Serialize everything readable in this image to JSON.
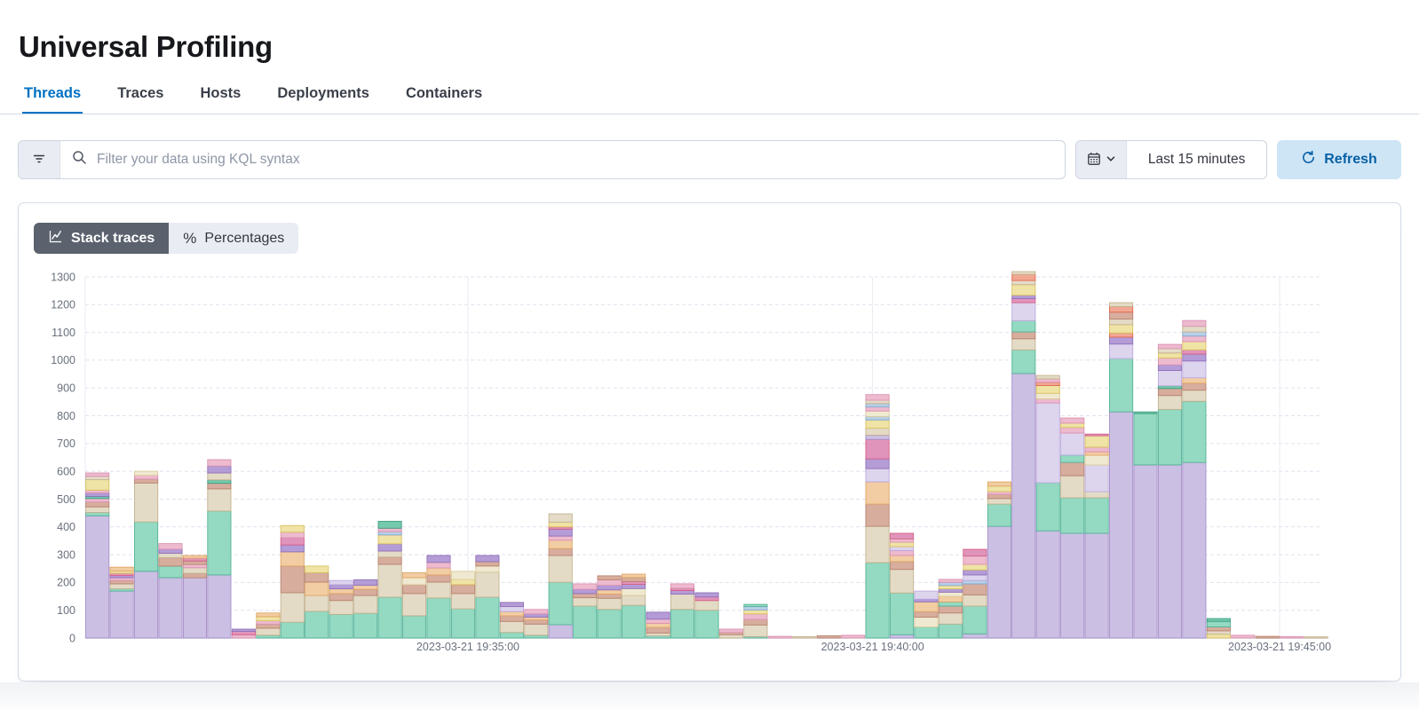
{
  "page": {
    "title": "Universal Profiling"
  },
  "tabs": [
    {
      "label": "Threads",
      "active": true
    },
    {
      "label": "Traces",
      "active": false
    },
    {
      "label": "Hosts",
      "active": false
    },
    {
      "label": "Deployments",
      "active": false
    },
    {
      "label": "Containers",
      "active": false
    }
  ],
  "filter_bar": {
    "search_placeholder": "Filter your data using KQL syntax",
    "time_range": "Last 15 minutes",
    "refresh_label": "Refresh"
  },
  "view_toggle": {
    "options": [
      {
        "label": "Stack traces",
        "icon": "line-chart-icon",
        "active": true
      },
      {
        "label": "Percentages",
        "icon": "percent-icon",
        "active": false
      }
    ]
  },
  "chart_data": {
    "type": "bar",
    "stacked": true,
    "orientation": "vertical",
    "legend": "none",
    "grid": "dashed-horizontal",
    "ylim": [
      0,
      1300
    ],
    "y_ticks": [
      0,
      100,
      200,
      300,
      400,
      500,
      600,
      700,
      800,
      900,
      1000,
      1100,
      1200,
      1300
    ],
    "x_ticks": [
      {
        "label": "2023-03-21 19:35:00",
        "slot": 15.7
      },
      {
        "label": "2023-03-21 19:40:00",
        "slot": 32.3
      },
      {
        "label": "2023-03-21 19:45:00",
        "slot": 49.0
      }
    ],
    "palette": {
      "P": {
        "name": "purple",
        "fill": "#CBBFE3",
        "stroke": "#A58FC9"
      },
      "L": {
        "name": "lavender",
        "fill": "#DDD4EE",
        "stroke": "#BCAADD"
      },
      "V": {
        "name": "violet",
        "fill": "#B49CD7",
        "stroke": "#9170B8"
      },
      "T": {
        "name": "teal",
        "fill": "#94D9C1",
        "stroke": "#54B399"
      },
      "G": {
        "name": "green",
        "fill": "#75C9AC",
        "stroke": "#3D9E81"
      },
      "N": {
        "name": "tan",
        "fill": "#E4DBC7",
        "stroke": "#C3B28E"
      },
      "C": {
        "name": "cream",
        "fill": "#F0E9D1",
        "stroke": "#D9CB9A"
      },
      "R": {
        "name": "rose",
        "fill": "#D7AD9E",
        "stroke": "#B8846F"
      },
      "O": {
        "name": "orange",
        "fill": "#F2CDA3",
        "stroke": "#E0A566"
      },
      "K": {
        "name": "pink",
        "fill": "#EDBACE",
        "stroke": "#DB92B3"
      },
      "M": {
        "name": "magenta",
        "fill": "#E194BB",
        "stroke": "#D36086"
      },
      "Y": {
        "name": "yellow",
        "fill": "#EFE3A5",
        "stroke": "#D9C360"
      },
      "E": {
        "name": "red",
        "fill": "#F0A893",
        "stroke": "#E7664C"
      },
      "B": {
        "name": "blue",
        "fill": "#B8D0E7",
        "stroke": "#84A9CE"
      }
    },
    "bars": [
      [
        [
          "P",
          440
        ],
        [
          "T",
          12
        ],
        [
          "N",
          20
        ],
        [
          "R",
          18
        ],
        [
          "K",
          12
        ],
        [
          "G",
          8
        ],
        [
          "V",
          12
        ],
        [
          "K",
          10
        ],
        [
          "Y",
          38
        ],
        [
          "N",
          12
        ],
        [
          "K",
          12
        ]
      ],
      [
        [
          "P",
          169
        ],
        [
          "T",
          8
        ],
        [
          "N",
          18
        ],
        [
          "R",
          12
        ],
        [
          "K",
          10
        ],
        [
          "V",
          8
        ],
        [
          "M",
          8
        ],
        [
          "Y",
          8
        ],
        [
          "O",
          14
        ]
      ],
      [
        [
          "P",
          240
        ],
        [
          "T",
          178
        ],
        [
          "N",
          140
        ],
        [
          "R",
          14
        ],
        [
          "K",
          14
        ],
        [
          "C",
          14
        ]
      ],
      [
        [
          "P",
          217
        ],
        [
          "T",
          42
        ],
        [
          "R",
          30
        ],
        [
          "N",
          16
        ],
        [
          "V",
          15
        ],
        [
          "K",
          20
        ]
      ],
      [
        [
          "P",
          217
        ],
        [
          "R",
          16
        ],
        [
          "N",
          20
        ],
        [
          "K",
          12
        ],
        [
          "R",
          12
        ],
        [
          "M",
          10
        ],
        [
          "O",
          10
        ]
      ],
      [
        [
          "P",
          227
        ],
        [
          "T",
          230
        ],
        [
          "N",
          80
        ],
        [
          "R",
          20
        ],
        [
          "G",
          12
        ],
        [
          "N",
          25
        ],
        [
          "V",
          25
        ],
        [
          "K",
          23
        ]
      ],
      [
        [
          "K",
          12
        ],
        [
          "M",
          12
        ],
        [
          "V",
          8
        ]
      ],
      [
        [
          "T",
          10
        ],
        [
          "N",
          25
        ],
        [
          "R",
          15
        ],
        [
          "K",
          12
        ],
        [
          "Y",
          15
        ],
        [
          "O",
          13
        ]
      ],
      [
        [
          "T",
          57
        ],
        [
          "N",
          106
        ],
        [
          "R",
          96
        ],
        [
          "O",
          51
        ],
        [
          "V",
          25
        ],
        [
          "M",
          26
        ],
        [
          "K",
          20
        ],
        [
          "Y",
          24
        ]
      ],
      [
        [
          "T",
          96
        ],
        [
          "N",
          57
        ],
        [
          "O",
          48
        ],
        [
          "R",
          34
        ],
        [
          "Y",
          24
        ]
      ],
      [
        [
          "T",
          85
        ],
        [
          "N",
          50
        ],
        [
          "R",
          25
        ],
        [
          "O",
          17
        ],
        [
          "V",
          15
        ],
        [
          "L",
          15
        ]
      ],
      [
        [
          "T",
          89
        ],
        [
          "N",
          64
        ],
        [
          "R",
          22
        ],
        [
          "O",
          15
        ],
        [
          "V",
          20
        ]
      ],
      [
        [
          "T",
          147
        ],
        [
          "N",
          118
        ],
        [
          "R",
          26
        ],
        [
          "N",
          22
        ],
        [
          "V",
          26
        ],
        [
          "Y",
          32
        ],
        [
          "B",
          12
        ],
        [
          "K",
          12
        ],
        [
          "G",
          25
        ]
      ],
      [
        [
          "T",
          80
        ],
        [
          "N",
          80
        ],
        [
          "R",
          32
        ],
        [
          "C",
          25
        ],
        [
          "O",
          18
        ]
      ],
      [
        [
          "T",
          144
        ],
        [
          "N",
          57
        ],
        [
          "R",
          26
        ],
        [
          "O",
          25
        ],
        [
          "K",
          20
        ],
        [
          "V",
          25
        ]
      ],
      [
        [
          "T",
          105
        ],
        [
          "N",
          55
        ],
        [
          "R",
          32
        ],
        [
          "Y",
          19
        ],
        [
          "C",
          29
        ]
      ],
      [
        [
          "T",
          147
        ],
        [
          "N",
          90
        ],
        [
          "C",
          22
        ],
        [
          "R",
          16
        ],
        [
          "V",
          22
        ]
      ],
      [
        [
          "T",
          20
        ],
        [
          "N",
          40
        ],
        [
          "R",
          20
        ],
        [
          "O",
          15
        ],
        [
          "L",
          18
        ],
        [
          "V",
          15
        ]
      ],
      [
        [
          "T",
          10
        ],
        [
          "N",
          40
        ],
        [
          "R",
          15
        ],
        [
          "O",
          10
        ],
        [
          "V",
          12
        ],
        [
          "K",
          16
        ]
      ],
      [
        [
          "P",
          48
        ],
        [
          "T",
          153
        ],
        [
          "N",
          96
        ],
        [
          "R",
          25
        ],
        [
          "O",
          30
        ],
        [
          "K",
          15
        ],
        [
          "V",
          25
        ],
        [
          "M",
          8
        ],
        [
          "Y",
          17
        ],
        [
          "N",
          30
        ]
      ],
      [
        [
          "T",
          115
        ],
        [
          "N",
          30
        ],
        [
          "R",
          15
        ],
        [
          "V",
          15
        ],
        [
          "K",
          20
        ]
      ],
      [
        [
          "T",
          103
        ],
        [
          "N",
          40
        ],
        [
          "R",
          15
        ],
        [
          "O",
          15
        ],
        [
          "V",
          17
        ],
        [
          "K",
          20
        ],
        [
          "R",
          14
        ]
      ],
      [
        [
          "T",
          118
        ],
        [
          "N",
          35
        ],
        [
          "C",
          25
        ],
        [
          "V",
          15
        ],
        [
          "M",
          10
        ],
        [
          "R",
          15
        ],
        [
          "O",
          12
        ]
      ],
      [
        [
          "T",
          8
        ],
        [
          "N",
          10
        ],
        [
          "R",
          20
        ],
        [
          "O",
          15
        ],
        [
          "K",
          15
        ],
        [
          "V",
          25
        ]
      ],
      [
        [
          "T",
          103
        ],
        [
          "N",
          55
        ],
        [
          "V",
          13
        ],
        [
          "M",
          8
        ],
        [
          "K",
          16
        ]
      ],
      [
        [
          "T",
          100
        ],
        [
          "N",
          35
        ],
        [
          "M",
          13
        ],
        [
          "V",
          15
        ]
      ],
      [
        [
          "N",
          12
        ],
        [
          "R",
          8
        ],
        [
          "K",
          12
        ]
      ],
      [
        [
          "T",
          5
        ],
        [
          "N",
          42
        ],
        [
          "R",
          20
        ],
        [
          "K",
          20
        ],
        [
          "Y",
          14
        ],
        [
          "B",
          12
        ],
        [
          "T",
          8
        ]
      ],
      [
        [
          "K",
          6
        ]
      ],
      [
        [
          "N",
          5
        ]
      ],
      [
        [
          "R",
          8
        ]
      ],
      [
        [
          "K",
          10
        ]
      ],
      [
        [
          "T",
          271
        ],
        [
          "N",
          131
        ],
        [
          "R",
          80
        ],
        [
          "O",
          80
        ],
        [
          "L",
          48
        ],
        [
          "V",
          35
        ],
        [
          "M",
          70
        ],
        [
          "P",
          15
        ],
        [
          "N",
          25
        ],
        [
          "Y",
          30
        ],
        [
          "B",
          12
        ],
        [
          "C",
          20
        ],
        [
          "K",
          15
        ],
        [
          "B",
          12
        ],
        [
          "N",
          12
        ],
        [
          "K",
          20
        ]
      ],
      [
        [
          "P",
          12
        ],
        [
          "T",
          150
        ],
        [
          "N",
          85
        ],
        [
          "R",
          28
        ],
        [
          "O",
          22
        ],
        [
          "K",
          18
        ],
        [
          "L",
          14
        ],
        [
          "Y",
          16
        ],
        [
          "K",
          12
        ],
        [
          "M",
          20
        ]
      ],
      [
        [
          "T",
          40
        ],
        [
          "C",
          35
        ],
        [
          "R",
          20
        ],
        [
          "O",
          35
        ],
        [
          "V",
          10
        ],
        [
          "L",
          29
        ]
      ],
      [
        [
          "T",
          50
        ],
        [
          "N",
          40
        ],
        [
          "R",
          25
        ],
        [
          "T",
          15
        ],
        [
          "O",
          20
        ],
        [
          "C",
          15
        ],
        [
          "V",
          12
        ],
        [
          "Y",
          12
        ],
        [
          "B",
          11
        ],
        [
          "K",
          11
        ]
      ],
      [
        [
          "P",
          15
        ],
        [
          "T",
          100
        ],
        [
          "N",
          40
        ],
        [
          "R",
          40
        ],
        [
          "B",
          12
        ],
        [
          "L",
          20
        ],
        [
          "V",
          18
        ],
        [
          "Y",
          20
        ],
        [
          "K",
          30
        ],
        [
          "M",
          24
        ]
      ],
      [
        [
          "P",
          402
        ],
        [
          "T",
          80
        ],
        [
          "N",
          20
        ],
        [
          "R",
          15
        ],
        [
          "K",
          10
        ],
        [
          "Y",
          20
        ],
        [
          "O",
          15
        ]
      ],
      [
        [
          "P",
          952
        ],
        [
          "T",
          85
        ],
        [
          "N",
          40
        ],
        [
          "R",
          25
        ],
        [
          "T",
          40
        ],
        [
          "L",
          65
        ],
        [
          "M",
          15
        ],
        [
          "V",
          12
        ],
        [
          "Y",
          38
        ],
        [
          "N",
          15
        ],
        [
          "E",
          22
        ],
        [
          "N",
          10
        ]
      ],
      [
        [
          "P",
          386
        ],
        [
          "T",
          173
        ],
        [
          "L",
          287
        ],
        [
          "K",
          15
        ],
        [
          "C",
          20
        ],
        [
          "Y",
          28
        ],
        [
          "E",
          12
        ],
        [
          "K",
          12
        ],
        [
          "N",
          12
        ]
      ],
      [
        [
          "P",
          377
        ],
        [
          "T",
          128
        ],
        [
          "N",
          79
        ],
        [
          "R",
          48
        ],
        [
          "T",
          26
        ],
        [
          "L",
          80
        ],
        [
          "K",
          20
        ],
        [
          "Y",
          15
        ],
        [
          "K",
          19
        ]
      ],
      [
        [
          "P",
          377
        ],
        [
          "T",
          128
        ],
        [
          "N",
          22
        ],
        [
          "L",
          96
        ],
        [
          "C",
          35
        ],
        [
          "O",
          12
        ],
        [
          "K",
          17
        ],
        [
          "Y",
          41
        ],
        [
          "M",
          6
        ]
      ],
      [
        [
          "P",
          814
        ],
        [
          "T",
          192
        ],
        [
          "L",
          52
        ],
        [
          "V",
          25
        ],
        [
          "E",
          15
        ],
        [
          "Y",
          30
        ],
        [
          "N",
          20
        ],
        [
          "R",
          25
        ],
        [
          "E",
          20
        ],
        [
          "N",
          14
        ]
      ],
      [
        [
          "P",
          623
        ],
        [
          "T",
          185
        ],
        [
          "G",
          6
        ]
      ],
      [
        [
          "P",
          623
        ],
        [
          "T",
          200
        ],
        [
          "N",
          50
        ],
        [
          "R",
          25
        ],
        [
          "G",
          10
        ],
        [
          "L",
          55
        ],
        [
          "V",
          20
        ],
        [
          "K",
          25
        ],
        [
          "Y",
          18
        ],
        [
          "N",
          16
        ],
        [
          "K",
          15
        ]
      ],
      [
        [
          "P",
          632
        ],
        [
          "T",
          220
        ],
        [
          "N",
          40
        ],
        [
          "R",
          25
        ],
        [
          "O",
          20
        ],
        [
          "L",
          60
        ],
        [
          "V",
          25
        ],
        [
          "M",
          15
        ],
        [
          "Y",
          30
        ],
        [
          "K",
          20
        ],
        [
          "B",
          15
        ],
        [
          "N",
          20
        ],
        [
          "K",
          21
        ]
      ],
      [
        [
          "Y",
          14
        ],
        [
          "N",
          12
        ],
        [
          "R",
          14
        ],
        [
          "T",
          20
        ],
        [
          "G",
          10
        ]
      ],
      [
        [
          "K",
          10
        ]
      ],
      [
        [
          "R",
          6
        ]
      ],
      [
        [
          "K",
          5
        ]
      ],
      [
        [
          "N",
          4
        ]
      ]
    ]
  }
}
